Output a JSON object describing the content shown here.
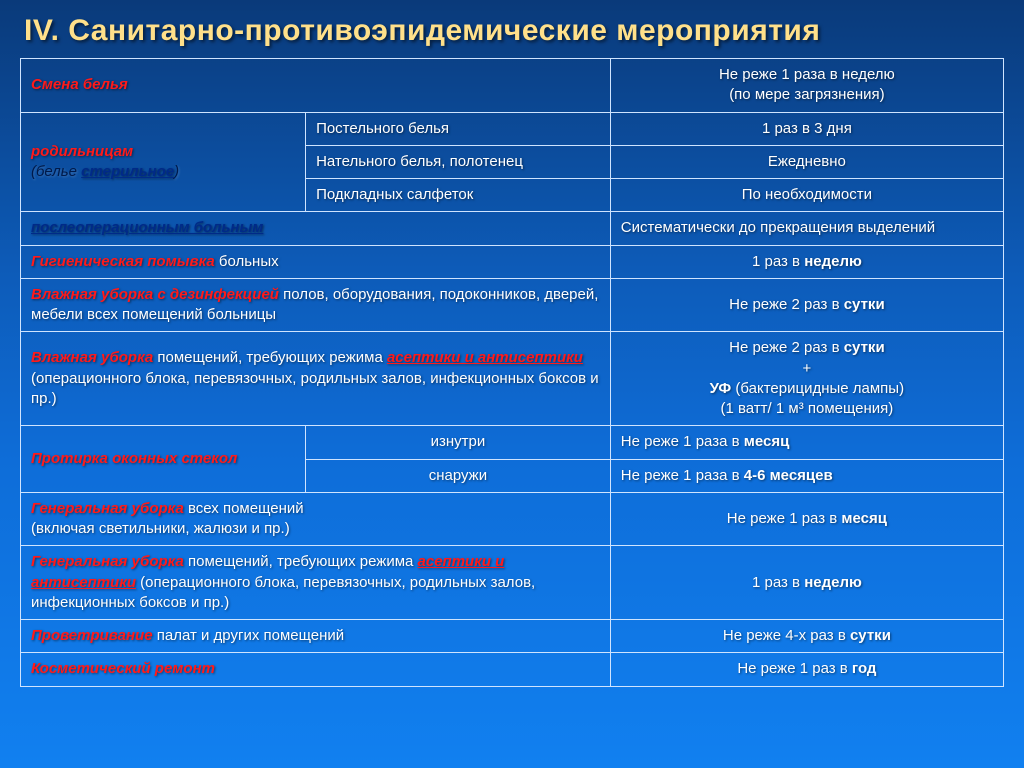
{
  "title": "IV. Санитарно-противоэпидемические мероприятия",
  "col_widths": [
    "29%",
    "31%",
    "40%"
  ],
  "r1": {
    "a_red": "Смена белья",
    "c": "Не реже 1 раза в неделю\n(по мере загрязнения)"
  },
  "r2": {
    "a_red": "родильницам",
    "a_plain": "(белье ",
    "a_blue": "стерильное",
    "a_plain2": ")",
    "b": "Постельного белья",
    "c": "1 раз в 3 дня"
  },
  "r3": {
    "b": "Нательного белья, полотенец",
    "c": "Ежедневно"
  },
  "r4": {
    "b": "Подкладных салфеток",
    "c": "По необходимости"
  },
  "r5": {
    "a_blue": "послеоперационным больным",
    "c": "Систематически до прекращения выделений"
  },
  "r6": {
    "a_red": "Гигиеническая помывка",
    "a_plain": " больных",
    "c_pre": "1 раз в ",
    "c_b": "неделю"
  },
  "r7": {
    "a_red": "Влажная уборка с дезинфекцией",
    "a_plain": " полов, оборудования, подоконников, дверей, мебели всех помещений больницы",
    "c_pre": "Не реже 2 раз в ",
    "c_b": "сутки"
  },
  "r8": {
    "a_red": "Влажная уборка",
    "a_mid": " помещений, требующих режима ",
    "a_redu": "асептики и антисептики",
    "a_tail": " (операционного блока, перевязочных, родильных залов, инфекционных боксов и пр.)",
    "c_l1_pre": "Не реже 2 раз в ",
    "c_l1_b": "сутки",
    "c_plus": "+",
    "c_l2_b": "УФ",
    "c_l2_tail": " (бактерицидные лампы)",
    "c_l3": "(1 ватт/ 1 м³ помещения)"
  },
  "r9": {
    "a_red": "Протирка оконных стекол",
    "b": "изнутри",
    "c_pre": "Не реже 1 раза в ",
    "c_b": "месяц"
  },
  "r10": {
    "b": "снаружи",
    "c_pre": "Не реже 1 раза в ",
    "c_b": "4-6 месяцев"
  },
  "r11": {
    "a_red": "Генеральная уборка",
    "a_plain": " всех помещений\n(включая светильники, жалюзи и пр.)",
    "c_pre": "Не реже 1 раз в ",
    "c_b": "месяц"
  },
  "r12": {
    "a_red": "Генеральная уборка",
    "a_mid": " помещений, требующих режима ",
    "a_redu": "асептики и антисептики",
    "a_tail": " (операционного блока, перевязочных, родильных залов, инфекционных боксов и пр.)",
    "c_pre": "1 раз в ",
    "c_b": "неделю"
  },
  "r13": {
    "a_red": "Проветривание",
    "a_plain": " палат и других помещений",
    "c_pre": "Не реже 4-х раз в ",
    "c_b": "сутки"
  },
  "r14": {
    "a_red": "Косметический ремонт",
    "c_pre": "Не реже 1 раз в ",
    "c_b": "год"
  }
}
